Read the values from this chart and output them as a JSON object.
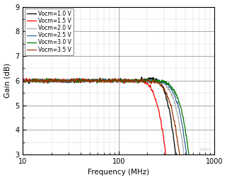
{
  "title": "",
  "xlabel": "Frequency (MHz)",
  "ylabel": "Gain (dB)",
  "xlim": [
    10,
    1000
  ],
  "ylim": [
    3,
    9
  ],
  "yticks": [
    3,
    4,
    5,
    6,
    7,
    8,
    9
  ],
  "legend_entries": [
    "Vocm=1.0 V",
    "Vocm=1.5 V",
    "Vocm=2.0 V",
    "Vocm=2.5 V",
    "Vocm=3.0 V",
    "Vocm=3.5 V"
  ],
  "colors": [
    "#000000",
    "#ff0000",
    "#aaaaaa",
    "#336699",
    "#007700",
    "#993300"
  ],
  "background_color": "#ffffff",
  "watermark": "CCCCC",
  "f3db_vals": [
    390,
    310,
    480,
    510,
    540,
    430
  ],
  "peaking_vals": [
    0.25,
    0.18,
    0.12,
    0.14,
    0.1,
    0.12
  ],
  "noise_amp": 0.06,
  "base_gain": 6.0,
  "rolloff_order": [
    3.5,
    3.0,
    3.0,
    3.0,
    3.0,
    3.0
  ]
}
